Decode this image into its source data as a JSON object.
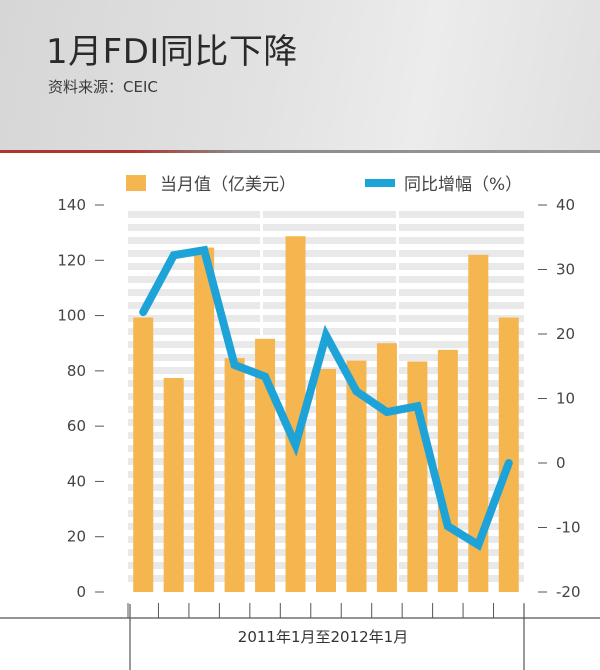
{
  "header": {
    "title": "1月FDI同比下降",
    "source": "资料来源：CEIC"
  },
  "colors": {
    "bar": "#f5b54f",
    "line": "#1ea3d8",
    "stripe": "#e9e9e9",
    "accent": "#b0352c"
  },
  "chart_data": {
    "type": "bar",
    "xlabel": "2011年1月至2012年1月",
    "series": [
      {
        "name": "当月值（亿美元）",
        "type": "bar",
        "axis": "left",
        "values": [
          99.3,
          77.4,
          124.6,
          84.6,
          91.6,
          128.7,
          80.7,
          83.7,
          90.0,
          83.4,
          87.6,
          122.0,
          99.3
        ]
      },
      {
        "name": "同比增幅（%）",
        "type": "line",
        "axis": "right",
        "values": [
          23.4,
          32.2,
          33.0,
          15.2,
          13.4,
          2.8,
          19.8,
          11.1,
          7.9,
          8.8,
          -9.8,
          -12.7,
          0
        ]
      }
    ],
    "y_left": {
      "ylim": [
        0,
        140
      ],
      "ticks": [
        "0",
        "20",
        "40",
        "60",
        "80",
        "100",
        "120",
        "140"
      ]
    },
    "y_right": {
      "ylim": [
        -20,
        40
      ],
      "ticks": [
        "-20",
        "-10",
        "0",
        "10",
        "20",
        "30",
        "40"
      ]
    },
    "legend_position": "top"
  }
}
